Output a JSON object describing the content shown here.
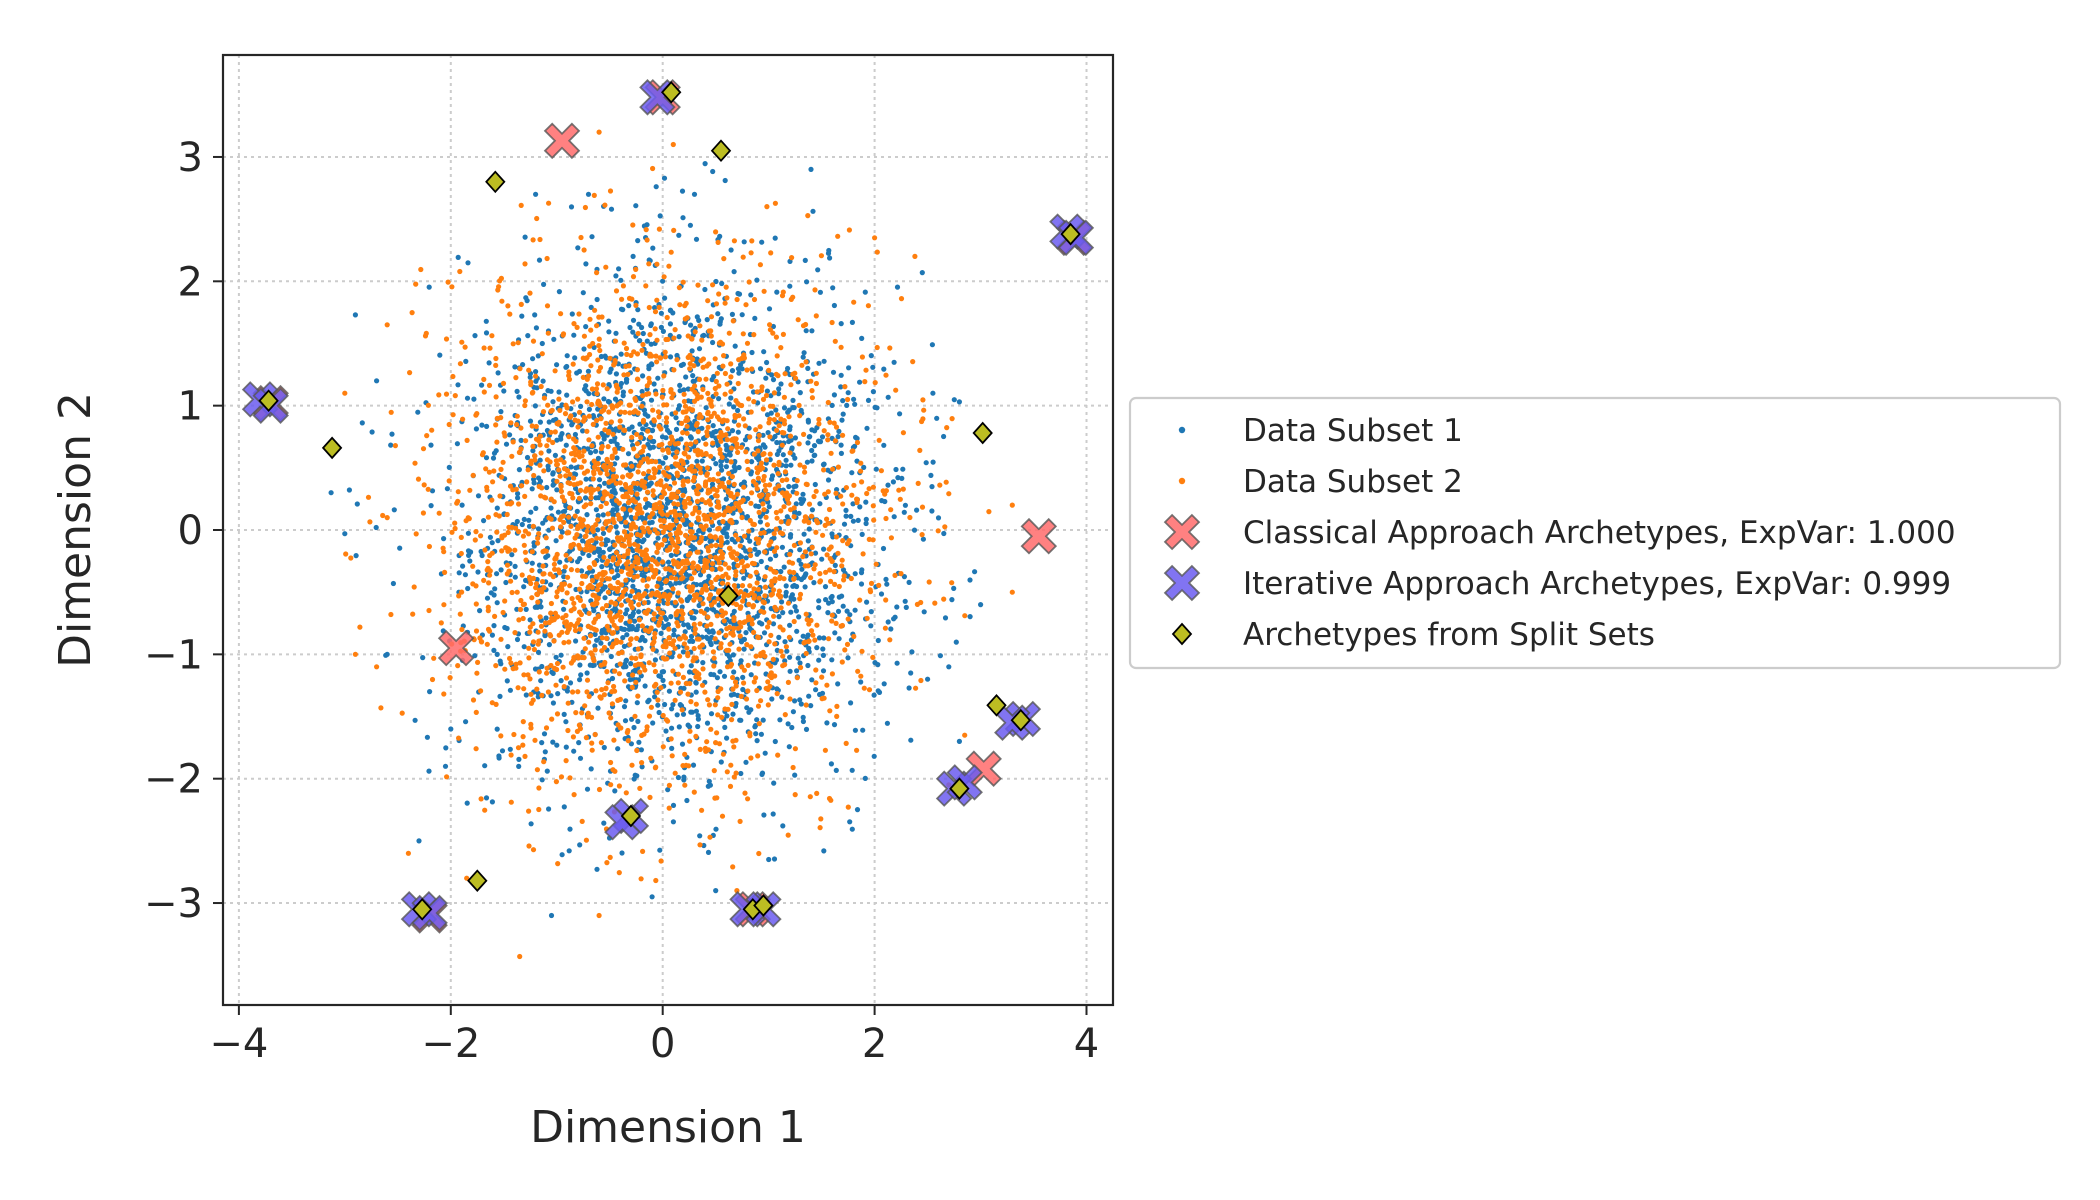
{
  "chart_data": {
    "type": "scatter",
    "title": "",
    "xlabel": "Dimension 1",
    "ylabel": "Dimension 2",
    "xlim": [
      -4.15,
      4.25
    ],
    "ylim": [
      -3.82,
      3.82
    ],
    "xticks": [
      -4,
      -2,
      0,
      2,
      4
    ],
    "yticks": [
      -3,
      -2,
      -1,
      0,
      1,
      2,
      3
    ],
    "grid": true,
    "legend_position": "outside-right",
    "colors": {
      "subset1": "#1f77b4",
      "subset2": "#ff7f0e",
      "classical": "#ff6b6b",
      "iterative": "#6b5cf0",
      "split": "#bcbd22",
      "grid": "#cccccc",
      "axes": "#262626"
    },
    "series": [
      {
        "name": "Data Subset 1",
        "marker": "dot",
        "distribution": {
          "type": "gaussian",
          "n": 2500,
          "mean": [
            0.1,
            0.0
          ],
          "std": [
            1.0,
            1.0
          ]
        },
        "points": [
          [
            1.4,
            2.9
          ],
          [
            -2.9,
            1.73
          ],
          [
            -3.13,
            0.3
          ],
          [
            -3.0,
            -0.03
          ],
          [
            -2.7,
            1.2
          ],
          [
            -2.0,
            -1.6
          ],
          [
            -2.05,
            -1.9
          ],
          [
            -2.3,
            -2.5
          ],
          [
            -1.2,
            2.7
          ],
          [
            -0.7,
            2.7
          ],
          [
            0.3,
            2.7
          ],
          [
            2.45,
            2.07
          ],
          [
            2.8,
            1.03
          ],
          [
            2.55,
            1.1
          ],
          [
            3.0,
            -0.6
          ],
          [
            2.7,
            -1.1
          ],
          [
            2.8,
            -1.7
          ],
          [
            2.5,
            -1.2
          ],
          [
            -1.05,
            -3.1
          ],
          [
            -0.1,
            -2.95
          ],
          [
            0.5,
            -2.9
          ],
          [
            1.0,
            -2.65
          ],
          [
            -2.2,
            -1.3
          ],
          [
            -2.6,
            -1.0
          ]
        ]
      },
      {
        "name": "Data Subset 2",
        "marker": "dot",
        "distribution": {
          "type": "gaussian",
          "n": 2500,
          "mean": [
            0.0,
            0.0
          ],
          "std": [
            1.0,
            1.0
          ]
        },
        "points": [
          [
            -1.35,
            -3.43
          ],
          [
            0.1,
            3.1
          ],
          [
            2.38,
            2.2
          ],
          [
            -2.6,
            1.65
          ],
          [
            -3.0,
            1.1
          ],
          [
            -2.9,
            -1.0
          ],
          [
            -1.85,
            -2.8
          ],
          [
            -0.6,
            -3.1
          ],
          [
            3.3,
            0.2
          ],
          [
            3.3,
            -0.5
          ],
          [
            2.7,
            -2.05
          ],
          [
            -2.4,
            -2.6
          ],
          [
            -2.6,
            0.1
          ],
          [
            -0.6,
            3.2
          ],
          [
            2.0,
            2.35
          ],
          [
            2.85,
            -1.65
          ],
          [
            -2.7,
            -1.1
          ],
          [
            0.7,
            -2.9
          ]
        ]
      },
      {
        "name": "Classical Approach Archetypes, ExpVar: 1.000",
        "marker": "x-cross",
        "points": [
          [
            -0.95,
            3.13
          ],
          [
            3.55,
            -0.05
          ],
          [
            3.03,
            -1.92
          ],
          [
            -1.95,
            -0.95
          ],
          [
            -2.2,
            -3.1
          ],
          [
            0.85,
            -3.05
          ],
          [
            -3.7,
            1.02
          ],
          [
            3.88,
            2.35
          ],
          [
            0.0,
            3.48
          ]
        ]
      },
      {
        "name": "Iterative Approach Archetypes, ExpVar: 0.999",
        "marker": "x-cross",
        "points": [
          [
            -0.05,
            3.48
          ],
          [
            3.82,
            2.4
          ],
          [
            3.9,
            2.35
          ],
          [
            -3.8,
            1.05
          ],
          [
            -3.7,
            1.0
          ],
          [
            3.4,
            -1.52
          ],
          [
            3.3,
            -1.55
          ],
          [
            2.75,
            -2.08
          ],
          [
            2.85,
            -2.03
          ],
          [
            -0.3,
            -2.3
          ],
          [
            -0.38,
            -2.35
          ],
          [
            0.8,
            -3.05
          ],
          [
            0.95,
            -3.05
          ],
          [
            -2.3,
            -3.05
          ],
          [
            -2.2,
            -3.08
          ]
        ]
      },
      {
        "name": "Archetypes from Split Sets",
        "marker": "diamond",
        "points": [
          [
            0.08,
            3.52
          ],
          [
            0.55,
            3.05
          ],
          [
            -1.58,
            2.8
          ],
          [
            3.85,
            2.38
          ],
          [
            -3.72,
            1.04
          ],
          [
            -3.12,
            0.66
          ],
          [
            3.02,
            0.78
          ],
          [
            0.62,
            -0.53
          ],
          [
            3.15,
            -1.41
          ],
          [
            3.38,
            -1.53
          ],
          [
            2.8,
            -2.08
          ],
          [
            -0.3,
            -2.3
          ],
          [
            -1.75,
            -2.82
          ],
          [
            0.85,
            -3.05
          ],
          [
            0.95,
            -3.02
          ],
          [
            -2.27,
            -3.05
          ]
        ]
      }
    ]
  }
}
